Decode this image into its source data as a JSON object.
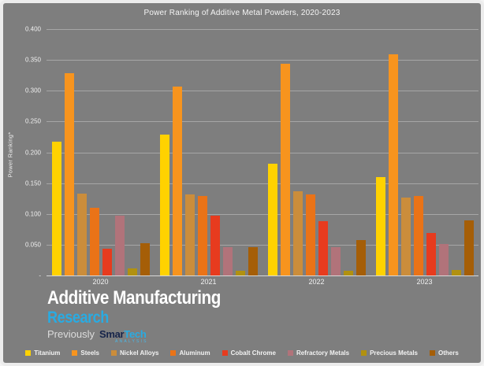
{
  "title": "Power Ranking of Additive Metal Powders, 2020-2023",
  "chart_data": {
    "type": "bar",
    "title": "Power Ranking of Additive Metal Powders, 2020-2023",
    "xlabel": "",
    "ylabel": "Power Ranking*",
    "ylim": [
      0,
      0.4
    ],
    "ytick_labels": [
      "0.400",
      "0.350",
      "0.300",
      "0.250",
      "0.200",
      "0.150",
      "0.100",
      "0.050",
      "-"
    ],
    "grid": true,
    "legend_position": "bottom",
    "categories": [
      "2020",
      "2021",
      "2022",
      "2023"
    ],
    "series": [
      {
        "name": "Titanium",
        "color": "#FFD200",
        "values": [
          0.217,
          0.229,
          0.182,
          0.16
        ]
      },
      {
        "name": "Steels",
        "color": "#F7941E",
        "values": [
          0.328,
          0.307,
          0.344,
          0.359
        ]
      },
      {
        "name": "Nickel Alloys",
        "color": "#CB8D3B",
        "values": [
          0.133,
          0.132,
          0.137,
          0.126
        ]
      },
      {
        "name": "Aluminum",
        "color": "#EA7317",
        "values": [
          0.11,
          0.129,
          0.132,
          0.129
        ]
      },
      {
        "name": "Cobalt Chrome",
        "color": "#E73B1E",
        "values": [
          0.043,
          0.097,
          0.088,
          0.069
        ]
      },
      {
        "name": "Refractory Metals",
        "color": "#B1737A",
        "values": [
          0.097,
          0.046,
          0.046,
          0.051
        ]
      },
      {
        "name": "Precious Metals",
        "color": "#B19110",
        "values": [
          0.012,
          0.008,
          0.008,
          0.009
        ]
      },
      {
        "name": "Others",
        "color": "#A55E07",
        "values": [
          0.053,
          0.046,
          0.057,
          0.089
        ]
      }
    ]
  },
  "branding": {
    "line1": "Additive Manufacturing",
    "line2": "Research",
    "previously": "Previously",
    "smartech_prefix": "Smar",
    "smartech_suffix": "Tech",
    "analysis": "ANALYSIS"
  },
  "colors": {
    "background": "#7E7E7E",
    "frame": "#ECECEC",
    "text": "#F2F2F2",
    "accent_cyan": "#29ABE2",
    "smartech_dark": "#16244A",
    "gridline": "#A6A6A6",
    "baseline": "#D9D9D9"
  }
}
